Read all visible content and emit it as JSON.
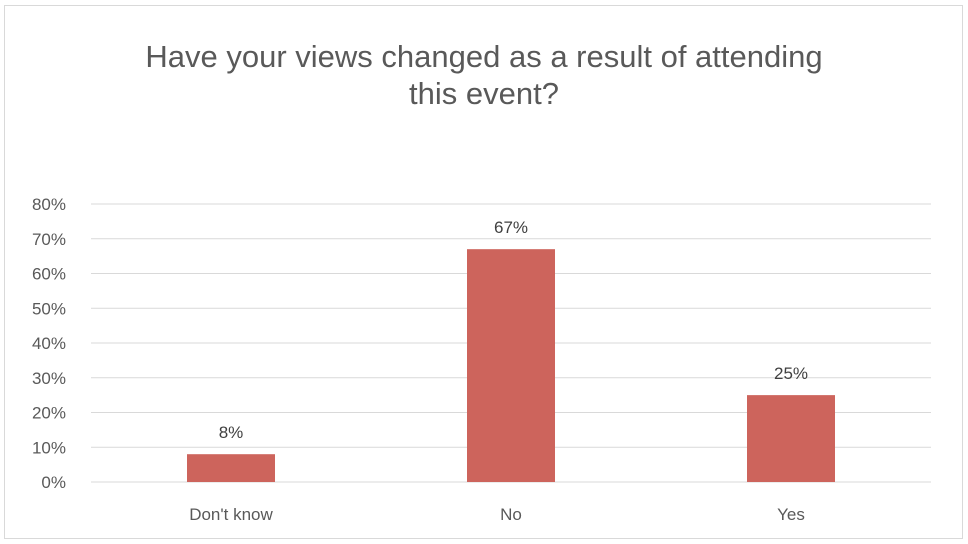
{
  "chart_data": {
    "type": "bar",
    "title_lines": [
      "Have your views changed as a result of attending",
      "this event?"
    ],
    "categories": [
      "Don't know",
      "No",
      "Yes"
    ],
    "values": [
      8,
      67,
      25
    ],
    "data_labels": [
      "8%",
      "67%",
      "25%"
    ],
    "y_ticks": [
      "0%",
      "10%",
      "20%",
      "30%",
      "40%",
      "50%",
      "60%",
      "70%",
      "80%"
    ],
    "ylim": [
      0,
      80
    ],
    "grid": true,
    "legend": "none",
    "bar_color": "#cd645c",
    "grid_color": "#d9d9d9"
  }
}
